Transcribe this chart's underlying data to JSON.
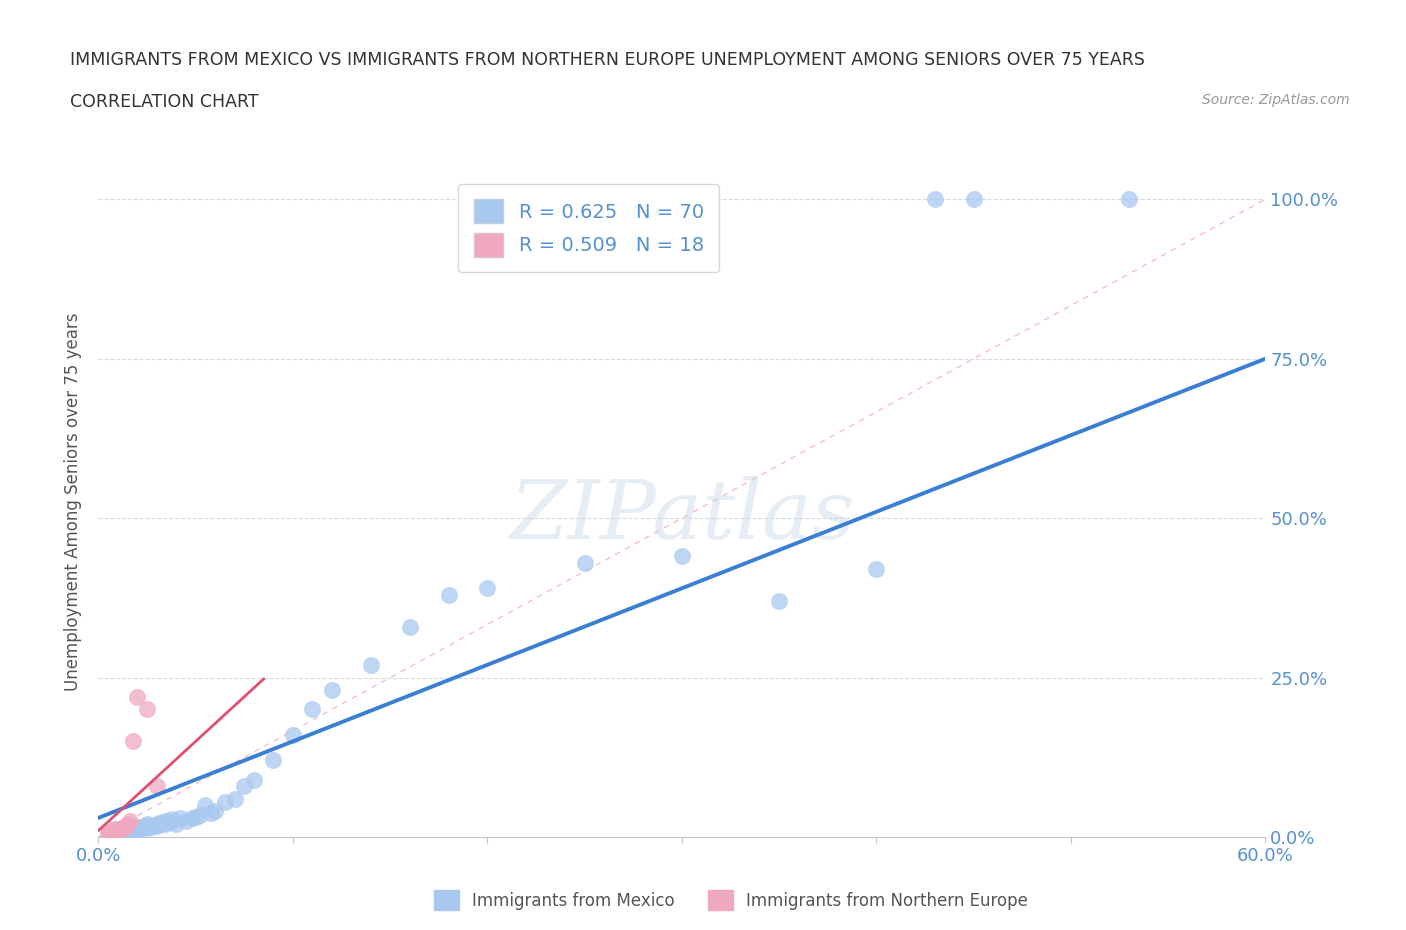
{
  "title_line1": "IMMIGRANTS FROM MEXICO VS IMMIGRANTS FROM NORTHERN EUROPE UNEMPLOYMENT AMONG SENIORS OVER 75 YEARS",
  "title_line2": "CORRELATION CHART",
  "source": "Source: ZipAtlas.com",
  "ylabel": "Unemployment Among Seniors over 75 years",
  "xlim": [
    0.0,
    0.6
  ],
  "ylim": [
    0.0,
    1.05
  ],
  "xtick_positions": [
    0.0,
    0.1,
    0.2,
    0.3,
    0.4,
    0.5,
    0.6
  ],
  "xticklabels": [
    "0.0%",
    "",
    "",
    "",
    "",
    "",
    "60.0%"
  ],
  "ytick_positions": [
    0.0,
    0.25,
    0.5,
    0.75,
    1.0
  ],
  "yticklabels": [
    "0.0%",
    "25.0%",
    "50.0%",
    "75.0%",
    "100.0%"
  ],
  "r_mexico": 0.625,
  "n_mexico": 70,
  "r_north_europe": 0.509,
  "n_north_europe": 18,
  "mexico_color": "#a8c8f0",
  "north_europe_color": "#f0a8c0",
  "mexico_line_color": "#3a7fd4",
  "north_europe_line_color": "#e05070",
  "diag_line_color": "#f0b0c0",
  "tick_color": "#5590d0",
  "background_color": "#ffffff",
  "watermark": "ZIPatlas",
  "mexico_line_intercept": 0.03,
  "mexico_line_slope": 1.2,
  "north_europe_line_intercept": 0.01,
  "north_europe_line_slope": 2.8,
  "north_europe_line_xmax": 0.085,
  "mexico_x": [
    0.005,
    0.007,
    0.008,
    0.009,
    0.01,
    0.01,
    0.01,
    0.011,
    0.011,
    0.012,
    0.012,
    0.013,
    0.013,
    0.014,
    0.015,
    0.015,
    0.016,
    0.016,
    0.017,
    0.017,
    0.018,
    0.018,
    0.019,
    0.02,
    0.02,
    0.021,
    0.022,
    0.023,
    0.024,
    0.025,
    0.025,
    0.026,
    0.027,
    0.028,
    0.03,
    0.031,
    0.032,
    0.033,
    0.034,
    0.035,
    0.037,
    0.038,
    0.04,
    0.042,
    0.045,
    0.048,
    0.05,
    0.052,
    0.055,
    0.058,
    0.06,
    0.065,
    0.07,
    0.075,
    0.08,
    0.09,
    0.1,
    0.11,
    0.12,
    0.14,
    0.16,
    0.18,
    0.2,
    0.25,
    0.3,
    0.35,
    0.4,
    0.43,
    0.45,
    0.53
  ],
  "mexico_y": [
    0.005,
    0.008,
    0.01,
    0.006,
    0.007,
    0.009,
    0.012,
    0.008,
    0.011,
    0.007,
    0.01,
    0.009,
    0.013,
    0.008,
    0.01,
    0.015,
    0.009,
    0.013,
    0.011,
    0.014,
    0.01,
    0.016,
    0.012,
    0.01,
    0.015,
    0.013,
    0.016,
    0.015,
    0.017,
    0.014,
    0.02,
    0.018,
    0.016,
    0.019,
    0.018,
    0.022,
    0.02,
    0.023,
    0.021,
    0.025,
    0.024,
    0.028,
    0.02,
    0.03,
    0.025,
    0.03,
    0.032,
    0.035,
    0.05,
    0.038,
    0.04,
    0.055,
    0.06,
    0.08,
    0.09,
    0.12,
    0.16,
    0.2,
    0.23,
    0.27,
    0.33,
    0.38,
    0.39,
    0.43,
    0.44,
    0.37,
    0.42,
    1.0,
    1.0,
    1.0
  ],
  "north_europe_x": [
    0.005,
    0.006,
    0.007,
    0.007,
    0.008,
    0.008,
    0.009,
    0.01,
    0.011,
    0.012,
    0.013,
    0.014,
    0.015,
    0.016,
    0.018,
    0.02,
    0.025,
    0.03
  ],
  "north_europe_y": [
    0.005,
    0.008,
    0.006,
    0.01,
    0.008,
    0.012,
    0.01,
    0.01,
    0.012,
    0.014,
    0.016,
    0.018,
    0.02,
    0.025,
    0.15,
    0.22,
    0.2,
    0.08
  ]
}
